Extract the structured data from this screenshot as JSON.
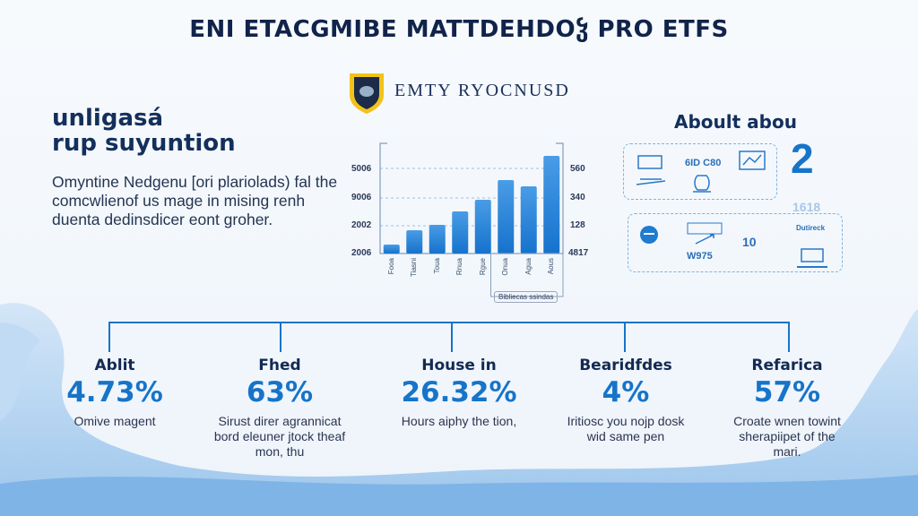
{
  "header": {
    "title": "ENI ETACGMIBE MATTDEHDOჴ PRO ETFS",
    "brand": "EMTY RYOCNUSD",
    "logo": "shield-logo"
  },
  "intro": {
    "heading_line1": "unligasá",
    "heading_line2": "rup suyuntion",
    "paragraph": "Omyntine Nedgenu [ori plariolads) fal the comcwlienof us mage in mising renh duenta dedinsdicer eont groher."
  },
  "chart_data": {
    "type": "bar",
    "categories": [
      "Fooa",
      "Tiasni",
      "Toua",
      "Rnua",
      "Rgue",
      "Onua",
      "Agua",
      "Aous"
    ],
    "values": [
      10,
      26,
      32,
      47,
      60,
      82,
      75,
      109
    ],
    "ylim": [
      0,
      123
    ],
    "left_ticks": [
      "2006",
      "2002",
      "9006",
      "5006"
    ],
    "right_ticks": [
      "4817",
      "128",
      "340",
      "560"
    ],
    "caption": "Bibliecas ssindas",
    "grid": true,
    "bar_color": "#1f7fd6"
  },
  "about": {
    "title": "Aboult abou",
    "big_number": "2",
    "cells": [
      "6ID C80",
      "W975",
      "10",
      "1618",
      "Dutireck"
    ]
  },
  "stats": [
    {
      "heading": "Ablit",
      "value": "4.73%",
      "desc": "Omive magent"
    },
    {
      "heading": "Fhed",
      "value": "63%",
      "desc": "Sirust direr agrannicat bord eleuner jtock theaf mon, thu"
    },
    {
      "heading": "House in",
      "value": "26.32%",
      "desc": "Hours aiphy the tion,"
    },
    {
      "heading": "Bearidfdes",
      "value": "4%",
      "desc": "Iritiosc you nojp dosk wid same pen"
    },
    {
      "heading": "Refarica",
      "value": "57%",
      "desc": "Croate wnen towint sherapiipet of the mari."
    }
  ],
  "colors": {
    "accent": "#1674c9",
    "navy": "#132f5c",
    "wave": "#a9cdf0"
  }
}
